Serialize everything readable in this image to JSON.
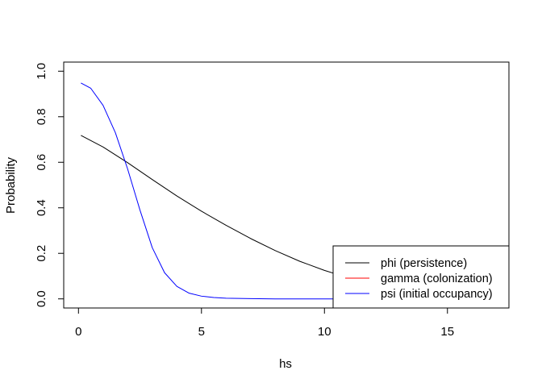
{
  "chart_data": {
    "type": "line",
    "title": "",
    "xlabel": "hs",
    "ylabel": "Probability",
    "xlim": [
      -0.6,
      17.5
    ],
    "ylim": [
      -0.04,
      1.04
    ],
    "x_ticks": [
      0,
      5,
      10,
      15
    ],
    "y_ticks": [
      0.0,
      0.2,
      0.4,
      0.6,
      0.8,
      1.0
    ],
    "x_tick_labels": [
      "0",
      "5",
      "10",
      "15"
    ],
    "y_tick_labels": [
      "0.0",
      "0.2",
      "0.4",
      "0.6",
      "0.8",
      "1.0"
    ],
    "grid": false,
    "legend_position": "bottom-right",
    "series": [
      {
        "name": "phi (persistence)",
        "color": "#000000",
        "x": [
          0.1,
          1,
          2,
          3,
          4,
          5,
          6,
          7,
          8,
          9,
          10,
          10.6
        ],
        "y": [
          0.718,
          0.667,
          0.598,
          0.524,
          0.452,
          0.385,
          0.323,
          0.265,
          0.212,
          0.165,
          0.125,
          0.105
        ]
      },
      {
        "name": "gamma (colonization)",
        "color": "#ff0000",
        "x": [],
        "y": []
      },
      {
        "name": "psi (initial occupancy)",
        "color": "#0000ff",
        "x": [
          0.1,
          0.5,
          1,
          1.5,
          2,
          2.5,
          3,
          3.5,
          4,
          4.5,
          5,
          5.5,
          6,
          7,
          8,
          9,
          10,
          10.6
        ],
        "y": [
          0.948,
          0.925,
          0.85,
          0.73,
          0.57,
          0.39,
          0.225,
          0.115,
          0.055,
          0.025,
          0.012,
          0.006,
          0.003,
          0.001,
          0.0,
          0.0,
          0.0,
          0.0
        ]
      }
    ]
  }
}
